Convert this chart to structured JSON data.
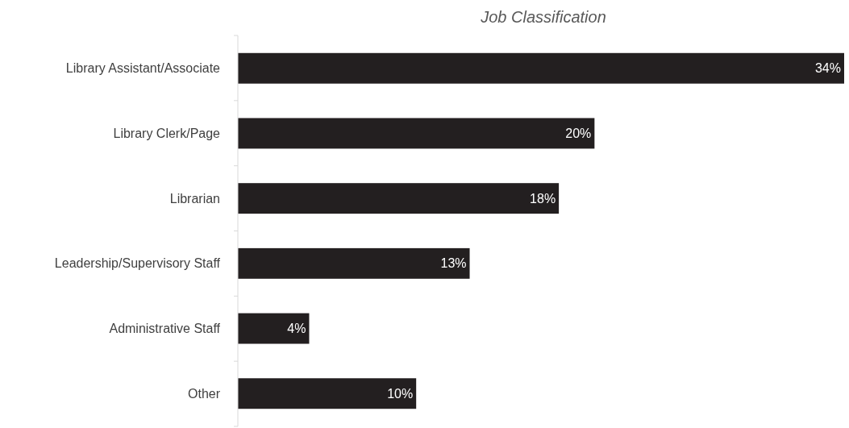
{
  "chart_data": {
    "type": "bar",
    "orientation": "horizontal",
    "title": "Job Classification",
    "categories": [
      "Library Assistant/Associate",
      "Library Clerk/Page",
      "Librarian",
      "Leadership/Supervisory Staff",
      "Administrative Staff",
      "Other"
    ],
    "values": [
      34,
      20,
      18,
      13,
      4,
      10
    ],
    "value_labels": [
      "34%",
      "20%",
      "18%",
      "13%",
      "4%",
      "10%"
    ],
    "color": "#231f20"
  }
}
